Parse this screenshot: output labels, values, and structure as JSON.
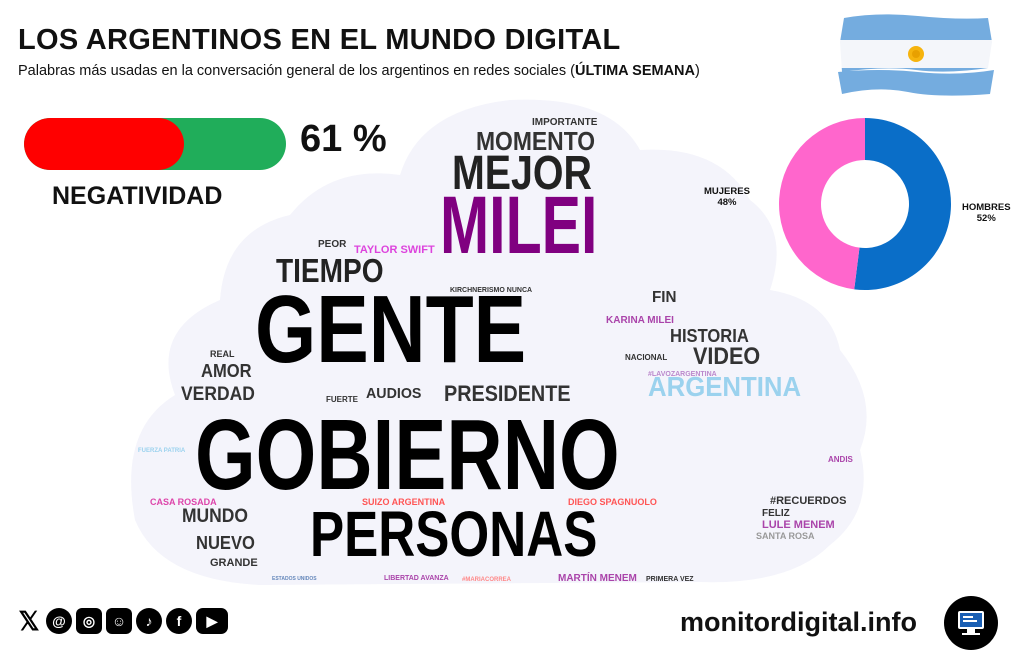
{
  "header": {
    "title": "LOS ARGENTINOS EN EL MUNDO DIGITAL",
    "subtitle_prefix": "Palabras más usadas en la conversación general de los argentinos en redes sociales (",
    "subtitle_bold": "ÚLTIMA SEMANA",
    "subtitle_suffix": ")"
  },
  "negativity": {
    "value": 61,
    "value_label": "61 %",
    "label": "NEGATIVIDAD",
    "color_negative": "#ff0000",
    "color_positive": "#20ad5a"
  },
  "chart_data": [
    {
      "type": "pie",
      "labels": [
        "HOMBRES",
        "MUJERES"
      ],
      "values": [
        52,
        48
      ],
      "value_labels": [
        "52%",
        "48%"
      ],
      "colors": [
        "#0a6ec8",
        "#ff66cc"
      ],
      "donut": true
    },
    {
      "type": "wordcloud",
      "words": [
        {
          "text": "GOBIERNO",
          "size": 100,
          "color": "#000000"
        },
        {
          "text": "GENTE",
          "size": 96,
          "color": "#000000"
        },
        {
          "text": "MILEI",
          "size": 82,
          "color": "#800080"
        },
        {
          "text": "PERSONAS",
          "size": 64,
          "color": "#000000"
        },
        {
          "text": "MEJOR",
          "size": 48,
          "color": "#222222"
        },
        {
          "text": "TIEMPO",
          "size": 33,
          "color": "#222222"
        },
        {
          "text": "MOMENTO",
          "size": 26,
          "color": "#333333"
        },
        {
          "text": "ARGENTINA",
          "size": 28,
          "color": "#9bd2ee"
        },
        {
          "text": "PRESIDENTE",
          "size": 22,
          "color": "#333333"
        },
        {
          "text": "VIDEO",
          "size": 24,
          "color": "#333333"
        },
        {
          "text": "HISTORIA",
          "size": 18,
          "color": "#333333"
        },
        {
          "text": "MUNDO",
          "size": 19,
          "color": "#333333"
        },
        {
          "text": "NUEVO",
          "size": 18,
          "color": "#333333"
        },
        {
          "text": "AMOR",
          "size": 18,
          "color": "#333333"
        },
        {
          "text": "VERDAD",
          "size": 19,
          "color": "#333333"
        },
        {
          "text": "AUDIOS",
          "size": 15,
          "color": "#333333"
        },
        {
          "text": "FIN",
          "size": 16,
          "color": "#333333"
        },
        {
          "text": "GRANDE",
          "size": 11,
          "color": "#333333"
        },
        {
          "text": "IMPORTANTE",
          "size": 10,
          "color": "#333333"
        },
        {
          "text": "PEOR",
          "size": 10,
          "color": "#333333"
        },
        {
          "text": "REAL",
          "size": 9,
          "color": "#333333"
        },
        {
          "text": "FUERTE",
          "size": 8,
          "color": "#333333"
        },
        {
          "text": "NACIONAL",
          "size": 8,
          "color": "#333333"
        },
        {
          "text": "FELIZ",
          "size": 10,
          "color": "#333333"
        },
        {
          "text": "#RECUERDOS",
          "size": 11,
          "color": "#333333"
        },
        {
          "text": "TAYLOR SWIFT",
          "size": 11,
          "color": "#dd44dd"
        },
        {
          "text": "KARINA MILEI",
          "size": 10,
          "color": "#aa44aa"
        },
        {
          "text": "KIRCHNERISMO NUNCA",
          "size": 7,
          "color": "#333333"
        },
        {
          "text": "#LAVOZARGENTINA",
          "size": 7,
          "color": "#bb88cc"
        },
        {
          "text": "FUERZA PATRIA",
          "size": 6,
          "color": "#9bd2ee"
        },
        {
          "text": "ANDIS",
          "size": 8,
          "color": "#aa44aa"
        },
        {
          "text": "CASA ROSADA",
          "size": 9,
          "color": "#dd44aa"
        },
        {
          "text": "SUIZO ARGENTINA",
          "size": 9,
          "color": "#ff5555"
        },
        {
          "text": "DIEGO SPAGNUOLO",
          "size": 9,
          "color": "#ff5555"
        },
        {
          "text": "LULE MENEM",
          "size": 11,
          "color": "#aa44aa"
        },
        {
          "text": "SANTA ROSA",
          "size": 9,
          "color": "#999999"
        },
        {
          "text": "ESTADOS UNIDOS",
          "size": 5,
          "color": "#6688bb"
        },
        {
          "text": "LIBERTAD AVANZA",
          "size": 7,
          "color": "#aa44aa"
        },
        {
          "text": "#MARIACORREA",
          "size": 6,
          "color": "#ff8888"
        },
        {
          "text": "MARTÍN MENEM",
          "size": 10,
          "color": "#aa44aa"
        },
        {
          "text": "PRIMERA VEZ",
          "size": 7,
          "color": "#333333"
        }
      ]
    }
  ],
  "footer": {
    "social_icons": [
      "x-icon",
      "threads-icon",
      "instagram-icon",
      "reddit-icon",
      "tiktok-icon",
      "facebook-icon",
      "youtube-icon"
    ],
    "site": "monitordigital.info",
    "badge_icon": "monitor-icon"
  }
}
